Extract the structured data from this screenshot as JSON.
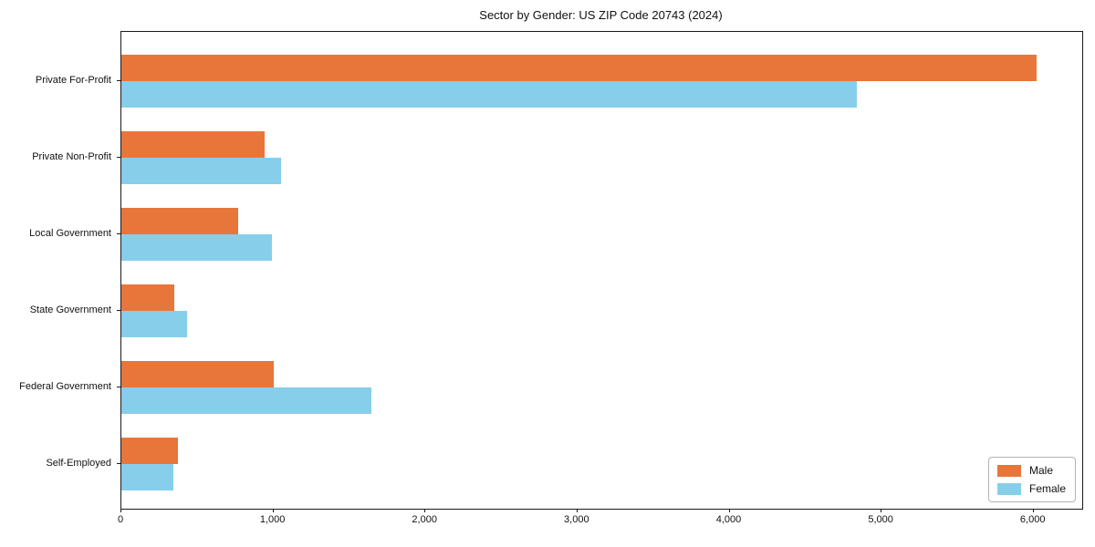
{
  "chart_data": {
    "type": "bar",
    "orientation": "horizontal",
    "title": "Sector by Gender: US ZIP Code 20743 (2024)",
    "categories": [
      "Private For-Profit",
      "Private Non-Profit",
      "Local Government",
      "State Government",
      "Federal Government",
      "Self-Employed"
    ],
    "series": [
      {
        "name": "Male",
        "color": "#e8763a",
        "values": [
          6020,
          940,
          770,
          350,
          1000,
          370
        ]
      },
      {
        "name": "Female",
        "color": "#87ceeb",
        "values": [
          4840,
          1050,
          990,
          430,
          1645,
          340
        ]
      }
    ],
    "xlim": [
      0,
      6320
    ],
    "xticks": [
      0,
      1000,
      2000,
      3000,
      4000,
      5000,
      6000
    ],
    "xtick_labels": [
      "0",
      "1,000",
      "2,000",
      "3,000",
      "4,000",
      "5,000",
      "6,000"
    ],
    "xlabel": "",
    "ylabel": "",
    "grid": false,
    "legend": {
      "position": "lower right",
      "entries": [
        "Male",
        "Female"
      ]
    },
    "colors": {
      "male": "#e8763a",
      "female": "#87ceeb",
      "spine": "#1a1a1a",
      "background": "#ffffff"
    }
  }
}
